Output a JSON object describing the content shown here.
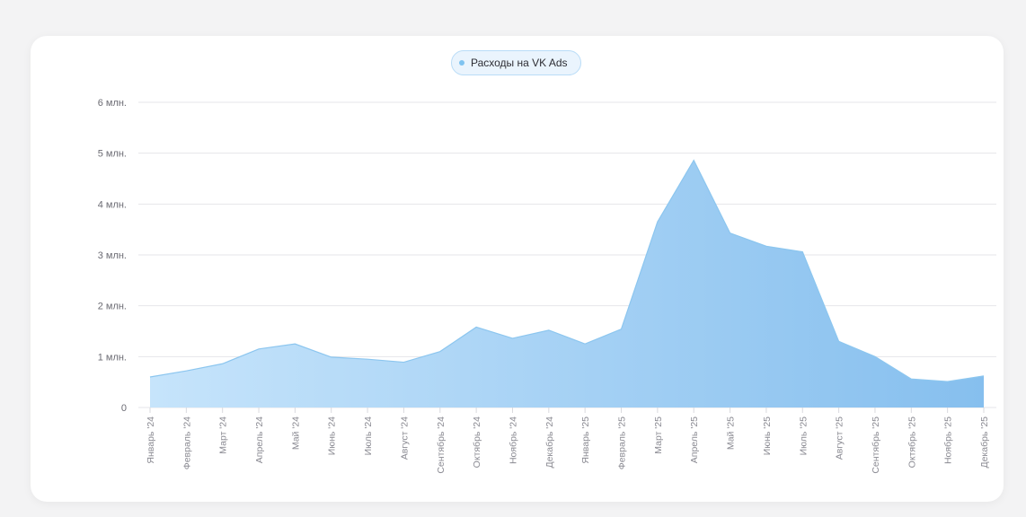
{
  "legend": {
    "label": "Расходы на VK Ads",
    "color": "#7fc3f0"
  },
  "chart_data": {
    "type": "area",
    "categories": [
      "Январь '24",
      "Февраль '24",
      "Март '24",
      "Апрель '24",
      "Май '24",
      "Июнь '24",
      "Июль '24",
      "Август '24",
      "Сентябрь '24",
      "Октябрь '24",
      "Ноябрь '24",
      "Декабрь '24",
      "Январь '25",
      "Февраль '25",
      "Март '25",
      "Апрель '25",
      "Май '25",
      "Июнь '25",
      "Июль '25",
      "Август '25",
      "Сентябрь '25",
      "Октябрь '25",
      "Ноябрь '25",
      "Декабрь '25"
    ],
    "series": [
      {
        "name": "Расходы на VK Ads",
        "values": [
          0.6,
          0.72,
          0.86,
          1.15,
          1.25,
          0.99,
          0.95,
          0.89,
          1.1,
          1.58,
          1.36,
          1.52,
          1.25,
          1.54,
          3.65,
          4.86,
          3.43,
          3.17,
          3.06,
          1.3,
          1.0,
          0.56,
          0.51,
          0.62
        ]
      }
    ],
    "ylim": [
      0,
      6
    ],
    "yticks": [
      0,
      1,
      2,
      3,
      4,
      5,
      6
    ],
    "ytick_labels": [
      "0",
      "1 млн.",
      "2 млн.",
      "3 млн.",
      "4 млн.",
      "5 млн.",
      "6 млн."
    ],
    "grid": true,
    "legend_position": "top-center",
    "gradient_from": "#c6e4fb",
    "gradient_to": "#86bfee"
  }
}
